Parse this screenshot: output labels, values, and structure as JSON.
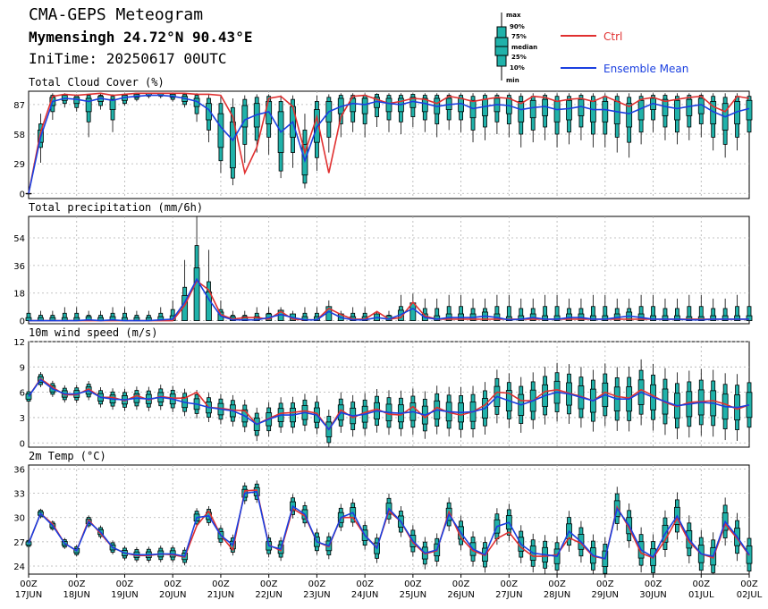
{
  "header": {
    "title": "CMA-GEPS Meteogram",
    "location": "Mymensingh 24.72°N 90.43°E",
    "init": "IniTime: 20250617 00UTC"
  },
  "legend": {
    "box_labels": [
      "max",
      "90%",
      "75%",
      "median",
      "25%",
      "10%",
      "min"
    ],
    "ctrl_label": "Ctrl",
    "mean_label": "Ensemble Mean",
    "ctrl_color": "#e03030",
    "mean_color": "#1a3fe0",
    "box_color": "#20b2aa"
  },
  "x_axis": {
    "hour_labels": [
      "00Z",
      "00Z",
      "00Z",
      "00Z",
      "00Z",
      "00Z",
      "00Z",
      "00Z",
      "00Z",
      "00Z",
      "00Z",
      "00Z",
      "00Z",
      "00Z",
      "00Z",
      "00Z"
    ],
    "date_labels": [
      "17JUN",
      "18JUN",
      "19JUN",
      "20JUN",
      "21JUN",
      "22JUN",
      "23JUN",
      "24JUN",
      "25JUN",
      "26JUN",
      "27JUN",
      "28JUN",
      "29JUN",
      "30JUN",
      "01JUL",
      "02JUL"
    ],
    "range_days": [
      0,
      15
    ],
    "step_hours": 6
  },
  "chart_data": [
    {
      "type": "box",
      "title": "Total Cloud Cover (%)",
      "ylim": [
        -5,
        100
      ],
      "yticks": [
        0,
        29,
        58,
        87
      ],
      "ctrl": [
        0,
        60,
        95,
        97,
        96,
        97,
        98,
        96,
        97,
        98,
        98,
        98,
        98,
        98,
        97,
        97,
        96,
        75,
        20,
        45,
        93,
        95,
        85,
        40,
        75,
        20,
        75,
        95,
        96,
        92,
        88,
        90,
        93,
        92,
        88,
        95,
        93,
        90,
        92,
        94,
        93,
        88,
        95,
        94,
        90,
        92,
        93,
        90,
        95,
        90,
        85,
        92,
        94,
        90,
        92,
        94,
        95,
        85,
        80,
        95,
        93,
        70,
        90,
        95,
        90,
        93,
        45,
        80,
        90,
        95,
        40,
        30,
        35,
        30,
        50,
        40,
        40,
        12,
        5,
        45,
        85,
        95,
        96,
        95,
        93,
        90,
        95,
        97,
        92,
        94,
        95,
        98,
        90
      ],
      "mean": [
        0,
        55,
        90,
        93,
        92,
        90,
        93,
        91,
        94,
        95,
        96,
        96,
        95,
        93,
        90,
        82,
        65,
        52,
        72,
        77,
        80,
        60,
        70,
        32,
        65,
        80,
        85,
        88,
        87,
        90,
        88,
        87,
        90,
        88,
        85,
        87,
        88,
        83,
        85,
        87,
        86,
        82,
        84,
        85,
        82,
        83,
        85,
        82,
        82,
        80,
        78,
        83,
        88,
        85,
        83,
        85,
        87,
        80,
        75,
        80,
        83,
        70,
        72,
        76,
        72,
        73,
        60,
        65,
        68,
        62,
        58,
        65,
        62,
        55,
        72,
        75,
        68,
        62,
        67,
        75,
        78,
        82,
        80,
        83,
        86,
        88,
        90,
        92,
        90,
        92,
        94,
        93,
        94
      ],
      "boxes": [
        [
          0,
          0,
          0,
          0,
          0,
          0,
          0
        ],
        [
          30,
          45,
          50,
          58,
          62,
          68,
          78
        ],
        [
          72,
          80,
          86,
          91,
          94,
          96,
          98
        ],
        [
          84,
          88,
          91,
          94,
          96,
          97,
          98
        ],
        [
          80,
          84,
          88,
          92,
          94,
          96,
          97
        ],
        [
          55,
          70,
          80,
          90,
          93,
          96,
          97
        ],
        [
          82,
          86,
          90,
          93,
          95,
          96,
          98
        ],
        [
          60,
          72,
          82,
          88,
          92,
          95,
          97
        ],
        [
          86,
          88,
          91,
          94,
          96,
          97,
          98
        ],
        [
          90,
          92,
          94,
          96,
          97,
          98,
          98
        ],
        [
          93,
          95,
          96,
          97,
          98,
          98,
          98
        ],
        [
          93,
          95,
          96,
          97,
          98,
          98,
          98
        ],
        [
          90,
          92,
          94,
          96,
          97,
          98,
          98
        ],
        [
          84,
          87,
          90,
          93,
          95,
          97,
          98
        ],
        [
          70,
          78,
          85,
          90,
          93,
          96,
          98
        ],
        [
          50,
          62,
          72,
          82,
          88,
          93,
          97
        ],
        [
          20,
          32,
          45,
          62,
          78,
          88,
          95
        ],
        [
          8,
          15,
          25,
          48,
          70,
          84,
          93
        ],
        [
          30,
          48,
          65,
          75,
          86,
          92,
          96
        ],
        [
          40,
          52,
          65,
          80,
          88,
          94,
          97
        ],
        [
          38,
          55,
          68,
          82,
          90,
          95,
          97
        ],
        [
          15,
          22,
          40,
          62,
          80,
          90,
          96
        ],
        [
          25,
          40,
          55,
          72,
          85,
          92,
          96
        ],
        [
          5,
          10,
          18,
          30,
          48,
          62,
          78
        ],
        [
          22,
          35,
          50,
          68,
          82,
          90,
          96
        ],
        [
          40,
          55,
          70,
          82,
          90,
          94,
          97
        ],
        [
          55,
          68,
          78,
          87,
          93,
          96,
          98
        ],
        [
          60,
          70,
          80,
          88,
          93,
          96,
          98
        ],
        [
          55,
          68,
          78,
          87,
          93,
          96,
          98
        ],
        [
          65,
          75,
          84,
          90,
          94,
          97,
          98
        ],
        [
          60,
          72,
          80,
          88,
          93,
          96,
          98
        ],
        [
          58,
          70,
          80,
          88,
          93,
          96,
          98
        ],
        [
          65,
          75,
          84,
          90,
          94,
          97,
          98
        ],
        [
          60,
          72,
          80,
          88,
          93,
          96,
          98
        ],
        [
          55,
          68,
          78,
          87,
          93,
          96,
          98
        ],
        [
          62,
          72,
          82,
          88,
          93,
          96,
          98
        ],
        [
          60,
          72,
          80,
          88,
          93,
          96,
          98
        ],
        [
          50,
          62,
          74,
          84,
          91,
          95,
          98
        ],
        [
          52,
          65,
          76,
          85,
          92,
          96,
          98
        ],
        [
          58,
          70,
          80,
          88,
          93,
          96,
          98
        ],
        [
          55,
          68,
          78,
          87,
          93,
          96,
          98
        ],
        [
          45,
          58,
          70,
          82,
          90,
          95,
          98
        ],
        [
          50,
          62,
          74,
          84,
          91,
          95,
          98
        ],
        [
          52,
          65,
          76,
          85,
          92,
          96,
          98
        ],
        [
          45,
          58,
          70,
          82,
          90,
          95,
          98
        ],
        [
          48,
          60,
          72,
          83,
          91,
          95,
          98
        ],
        [
          52,
          65,
          76,
          85,
          92,
          96,
          98
        ],
        [
          45,
          58,
          70,
          82,
          90,
          95,
          98
        ],
        [
          45,
          58,
          70,
          82,
          90,
          95,
          98
        ],
        [
          40,
          55,
          68,
          80,
          90,
          95,
          98
        ],
        [
          35,
          50,
          65,
          78,
          88,
          94,
          98
        ],
        [
          48,
          60,
          72,
          83,
          91,
          95,
          98
        ],
        [
          60,
          72,
          82,
          88,
          93,
          96,
          98
        ],
        [
          52,
          65,
          76,
          85,
          92,
          96,
          98
        ],
        [
          48,
          60,
          72,
          83,
          91,
          95,
          98
        ],
        [
          52,
          65,
          76,
          85,
          92,
          96,
          98
        ],
        [
          55,
          68,
          78,
          87,
          93,
          96,
          98
        ],
        [
          42,
          55,
          68,
          80,
          90,
          95,
          98
        ],
        [
          35,
          48,
          62,
          76,
          88,
          94,
          98
        ],
        [
          42,
          55,
          68,
          80,
          90,
          95,
          98
        ],
        [
          48,
          60,
          72,
          83,
          91,
          95,
          98
        ],
        [
          25,
          40,
          55,
          72,
          85,
          92,
          97
        ],
        [
          28,
          42,
          58,
          74,
          86,
          93,
          98
        ],
        [
          32,
          46,
          62,
          76,
          88,
          94,
          98
        ],
        [
          25,
          40,
          55,
          72,
          85,
          92,
          97
        ],
        [
          28,
          42,
          58,
          74,
          86,
          93,
          98
        ],
        [
          10,
          22,
          38,
          60,
          80,
          90,
          96
        ],
        [
          15,
          28,
          42,
          66,
          82,
          92,
          97
        ],
        [
          18,
          30,
          45,
          68,
          84,
          92,
          97
        ],
        [
          12,
          25,
          40,
          62,
          80,
          90,
          96
        ],
        [
          8,
          18,
          32,
          56,
          76,
          88,
          95
        ],
        [
          15,
          28,
          42,
          66,
          82,
          92,
          97
        ],
        [
          12,
          25,
          40,
          60,
          80,
          90,
          96
        ],
        [
          8,
          18,
          30,
          52,
          74,
          88,
          95
        ],
        [
          25,
          40,
          55,
          74,
          86,
          93,
          98
        ],
        [
          30,
          45,
          58,
          76,
          88,
          94,
          98
        ],
        [
          20,
          35,
          50,
          70,
          84,
          92,
          97
        ],
        [
          12,
          25,
          40,
          62,
          80,
          90,
          96
        ],
        [
          18,
          32,
          48,
          68,
          82,
          92,
          97
        ],
        [
          30,
          45,
          58,
          78,
          88,
          94,
          98
        ],
        [
          38,
          52,
          65,
          80,
          90,
          95,
          98
        ],
        [
          45,
          58,
          70,
          84,
          91,
          95,
          98
        ],
        [
          40,
          55,
          68,
          82,
          90,
          95,
          98
        ],
        [
          50,
          62,
          74,
          85,
          92,
          96,
          98
        ],
        [
          55,
          68,
          78,
          88,
          93,
          96,
          98
        ],
        [
          62,
          72,
          82,
          90,
          94,
          97,
          98
        ],
        [
          68,
          78,
          86,
          92,
          95,
          97,
          98
        ],
        [
          72,
          80,
          88,
          93,
          96,
          97,
          98
        ],
        [
          70,
          78,
          86,
          92,
          95,
          97,
          98
        ],
        [
          75,
          82,
          89,
          94,
          96,
          97,
          98
        ],
        [
          78,
          84,
          90,
          95,
          97,
          98,
          98
        ],
        [
          78,
          84,
          90,
          95,
          97,
          98,
          98
        ],
        [
          80,
          86,
          91,
          95,
          97,
          98,
          98
        ]
      ]
    },
    {
      "type": "box",
      "title": "Total precipitation (mm/6h)",
      "ylim": [
        -2,
        68
      ],
      "yticks": [
        0,
        18,
        36,
        54
      ],
      "ctrl": [
        0,
        0,
        0,
        0,
        0,
        0,
        0,
        0,
        0,
        0,
        0,
        0,
        0,
        0,
        0,
        0,
        0,
        0,
        0,
        0,
        0,
        0,
        0,
        0,
        0,
        0,
        0,
        0,
        0,
        0,
        0,
        0,
        0,
        0,
        0,
        0,
        0,
        0,
        0,
        0,
        0,
        0,
        0,
        0,
        0,
        0,
        0,
        0,
        0,
        0,
        0,
        0,
        0,
        0,
        0,
        0,
        0,
        0,
        0,
        0,
        0,
        0,
        0,
        0,
        0,
        0,
        0,
        0,
        0,
        0,
        0,
        0,
        0,
        0,
        0,
        0,
        0,
        0,
        0,
        0,
        0,
        0,
        0,
        0,
        0,
        0,
        0,
        0,
        0,
        0,
        0,
        0,
        0
      ],
      "mean": [
        0,
        0,
        0,
        0,
        0,
        0,
        0,
        0,
        0,
        0,
        0,
        0,
        0,
        0,
        0,
        0,
        0,
        0,
        0,
        0,
        0,
        0,
        0,
        0,
        0,
        0,
        0,
        0,
        0,
        0,
        0,
        0,
        0,
        0,
        0,
        0,
        0,
        0,
        0,
        0,
        0,
        0,
        0,
        0,
        0,
        0,
        0,
        0,
        0,
        0,
        0,
        0,
        0,
        0,
        0,
        0,
        0,
        0,
        0,
        0,
        0,
        0,
        0,
        0,
        0,
        0,
        0,
        0,
        0,
        0,
        0,
        0,
        0,
        0,
        0,
        0,
        0,
        0,
        0,
        0,
        0,
        0,
        0,
        0,
        0,
        0,
        0,
        0,
        0,
        0,
        0,
        0,
        0
      ],
      "boxes": []
    },
    {
      "type": "box",
      "title": "10m wind speed (m/s)",
      "ylim": [
        -0.5,
        12
      ],
      "yticks": [
        0,
        3,
        6,
        9,
        12
      ],
      "ctrl": [],
      "mean": [],
      "boxes": []
    },
    {
      "type": "box",
      "title": "2m Temp (°C)",
      "ylim": [
        23,
        36.5
      ],
      "yticks": [
        24,
        27,
        30,
        33,
        36
      ],
      "ctrl": [],
      "mean": [],
      "boxes": []
    }
  ]
}
